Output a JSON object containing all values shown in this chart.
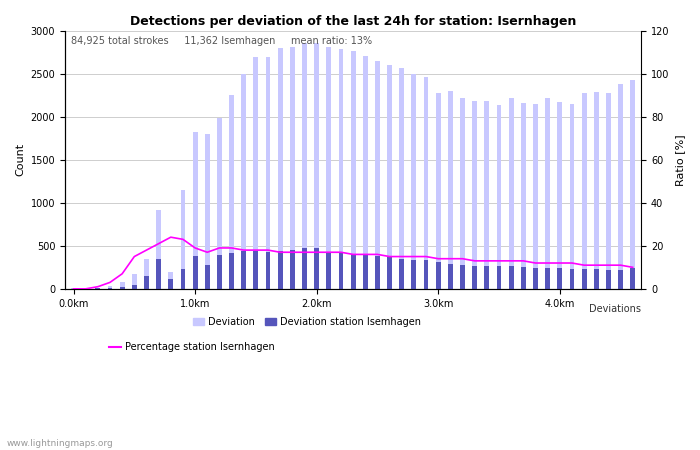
{
  "title": "Detections per deviation of the last 24h for station: Isernhagen",
  "subtitle": "84,925 total strokes     11,362 Isemhagen     mean ratio: 13%",
  "xlabel": "Deviations",
  "ylabel_left": "Count",
  "ylabel_right": "Ratio [%]",
  "watermark": "www.lightningmaps.org",
  "ylim_left": [
    0,
    3000
  ],
  "ylim_right": [
    0,
    120
  ],
  "yticks_left": [
    0,
    500,
    1000,
    1500,
    2000,
    2500,
    3000
  ],
  "yticks_right": [
    0,
    20,
    40,
    60,
    80,
    100,
    120
  ],
  "xtick_labels": [
    "0.0km",
    "1.0km",
    "2.0km",
    "3.0km",
    "4.0km"
  ],
  "xtick_positions": [
    0,
    10,
    20,
    30,
    40
  ],
  "bar_width": 0.4,
  "deviation_total": [
    5,
    10,
    15,
    30,
    80,
    170,
    350,
    910,
    200,
    1150,
    1820,
    1800,
    1980,
    2250,
    2500,
    2690,
    2690,
    2800,
    2810,
    2850,
    2850,
    2810,
    2780,
    2760,
    2710,
    2650,
    2600,
    2560,
    2490,
    2460,
    2280,
    2300,
    2220,
    2180,
    2180,
    2140,
    2220,
    2160,
    2150,
    2220,
    2170,
    2150,
    2280,
    2290,
    2280,
    2380,
    2430
  ],
  "deviation_station": [
    0,
    0,
    5,
    10,
    20,
    40,
    150,
    350,
    110,
    230,
    380,
    280,
    390,
    420,
    440,
    440,
    430,
    440,
    450,
    470,
    470,
    430,
    420,
    400,
    390,
    380,
    370,
    350,
    340,
    340,
    310,
    290,
    280,
    270,
    270,
    260,
    260,
    250,
    240,
    240,
    240,
    230,
    230,
    230,
    220,
    220,
    240
  ],
  "percentage": [
    0,
    0,
    1,
    3,
    7,
    15,
    18,
    21,
    24,
    23,
    19,
    17,
    19,
    19,
    18,
    18,
    18,
    17,
    17,
    17,
    17,
    17,
    17,
    16,
    16,
    16,
    15,
    15,
    15,
    15,
    14,
    14,
    14,
    13,
    13,
    13,
    13,
    13,
    12,
    12,
    12,
    12,
    11,
    11,
    11,
    11,
    10
  ],
  "color_deviation_total": "#c8c8ff",
  "color_deviation_station": "#5555bb",
  "color_percentage": "#ff00ff",
  "color_grid": "#bbbbbb",
  "bg_color": "#ffffff",
  "legend_items": [
    "Deviation",
    "Deviation station Isemhagen",
    "Percentage station Isernhagen"
  ],
  "title_fontsize": 9,
  "subtitle_fontsize": 7,
  "axis_fontsize": 8,
  "tick_fontsize": 7
}
